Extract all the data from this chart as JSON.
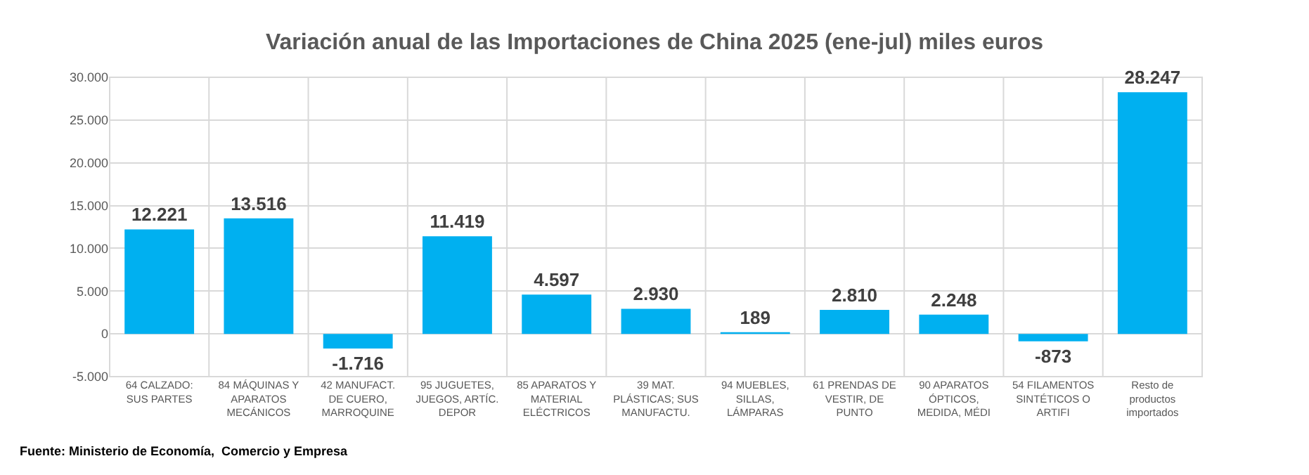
{
  "chart_data": {
    "type": "bar",
    "title": "Variación anual de las Importaciones de China 2025 (ene-jul) miles euros",
    "categories": [
      "64 CALZADO: SUS PARTES",
      "84 MÁQUINAS Y APARATOS MECÁNICOS",
      "42 MANUFACT. DE CUERO, MARROQUINE",
      "95 JUGUETES, JUEGOS, ARTÍC. DEPOR",
      "85 APARATOS Y MATERIAL ELÉCTRICOS",
      "39 MAT. PLÁSTICAS; SUS MANUFACTU.",
      "94 MUEBLES, SILLAS, LÁMPARAS",
      "61 PRENDAS DE VESTIR, DE PUNTO",
      "90 APARATOS ÓPTICOS, MEDIDA, MÉDI",
      "54 FILAMENTOS SINTÉTICOS O ARTIFI",
      "Resto de productos importados"
    ],
    "values": [
      12221,
      13516,
      -1716,
      11419,
      4597,
      2930,
      189,
      2810,
      2248,
      -873,
      28247
    ],
    "value_labels": [
      "12.221",
      "13.516",
      "-1.716",
      "11.419",
      "4.597",
      "2.930",
      "189",
      "2.810",
      "2.248",
      "-873",
      "28.247"
    ],
    "color": "#00b0f0",
    "ylim": [
      -5000,
      30000
    ],
    "yticks": [
      {
        "value": -5000,
        "label": "-5.000"
      },
      0,
      {
        "value": 5000,
        "label": "5.000"
      },
      {
        "value": 10000,
        "label": "10.000"
      },
      {
        "value": 15000,
        "label": "15.000"
      },
      {
        "value": 20000,
        "label": "20.000"
      },
      {
        "value": 25000,
        "label": "25.000"
      },
      {
        "value": 30000,
        "label": "30.000"
      }
    ],
    "grid": true,
    "annotations": [
      "Fuente: Ministerio de Economía,  Comercio y Empresa"
    ]
  }
}
